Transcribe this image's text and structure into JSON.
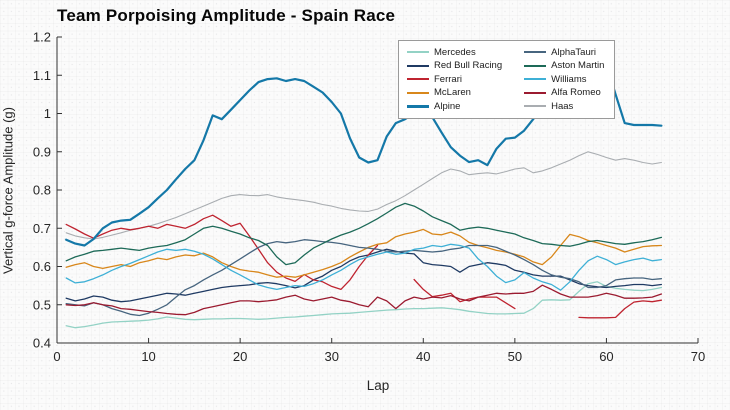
{
  "title": "Team Porpoising Amplitude - Spain Race",
  "x_axis": {
    "label": "Lap",
    "tick_labels": [
      "0",
      "10",
      "20",
      "30",
      "40",
      "50",
      "60",
      "70"
    ],
    "tick_values": [
      0,
      10,
      20,
      30,
      40,
      50,
      60,
      70
    ]
  },
  "y_axis": {
    "label": "Vertical g-force Amplitude (g)",
    "tick_labels": [
      "0.4",
      "0.5",
      "0.6",
      "0.7",
      "0.8",
      "0.9",
      "1",
      "1.1",
      "1.2"
    ],
    "tick_values": [
      0.4,
      0.5,
      0.6,
      0.7,
      0.8,
      0.9,
      1.0,
      1.1,
      1.2
    ]
  },
  "legend": {
    "columns": [
      [
        "Mercedes",
        "Red Bull Racing",
        "Ferrari",
        "McLaren",
        "Alpine"
      ],
      [
        "AlphaTauri",
        "Aston Martin",
        "Williams",
        "Alfa Romeo",
        "Haas"
      ]
    ]
  },
  "chart_data": {
    "type": "line",
    "title": "Team Porpoising Amplitude - Spain Race",
    "xlabel": "Lap",
    "ylabel": "Vertical g-force Amplitude (g)",
    "xlim": [
      0,
      70
    ],
    "ylim": [
      0.4,
      1.2
    ],
    "grid": "fine dotted",
    "legend_position": "upper center inside plot",
    "lap_start": 1,
    "series": [
      {
        "name": "Haas",
        "color": "#a9adb1",
        "width": 1.1,
        "values": [
          0.688,
          0.68,
          0.675,
          0.672,
          0.676,
          0.682,
          0.688,
          0.695,
          0.7,
          0.705,
          0.712,
          0.72,
          0.728,
          0.738,
          0.748,
          0.758,
          0.768,
          0.778,
          0.785,
          0.788,
          0.786,
          0.785,
          0.788,
          0.782,
          0.778,
          0.775,
          0.772,
          0.768,
          0.762,
          0.758,
          0.752,
          0.748,
          0.745,
          0.744,
          0.75,
          0.762,
          0.772,
          0.785,
          0.8,
          0.815,
          0.83,
          0.845,
          0.855,
          0.85,
          0.84,
          0.843,
          0.845,
          0.842,
          0.848,
          0.855,
          0.858,
          0.845,
          0.85,
          0.858,
          0.868,
          0.878,
          0.89,
          0.9,
          0.893,
          0.885,
          0.878,
          0.882,
          0.878,
          0.872,
          0.868,
          0.872
        ]
      },
      {
        "name": "Mercedes",
        "color": "#93d2c5",
        "width": 1.3,
        "values": [
          0.445,
          0.44,
          0.443,
          0.447,
          0.452,
          0.455,
          0.456,
          0.457,
          0.458,
          0.46,
          0.463,
          0.468,
          0.465,
          0.462,
          0.461,
          0.462,
          0.463,
          0.463,
          0.464,
          0.464,
          0.463,
          0.462,
          0.463,
          0.465,
          0.467,
          0.468,
          0.47,
          0.472,
          0.474,
          0.476,
          0.477,
          0.478,
          0.48,
          0.482,
          0.484,
          0.486,
          0.487,
          0.489,
          0.49,
          0.49,
          0.491,
          0.492,
          0.49,
          0.487,
          0.483,
          0.48,
          0.477,
          0.476,
          0.476,
          0.477,
          0.478,
          0.49,
          0.512,
          0.513,
          0.512,
          0.513,
          0.535,
          0.555,
          0.56,
          0.548,
          0.543,
          0.54,
          0.538,
          0.537,
          0.54,
          0.545
        ]
      },
      {
        "name": "Red Bull Racing",
        "color": "#1f3a63",
        "width": 1.3,
        "values": [
          0.517,
          0.51,
          0.515,
          0.523,
          0.52,
          0.512,
          0.508,
          0.51,
          0.515,
          0.52,
          0.525,
          0.53,
          0.528,
          0.525,
          0.53,
          0.535,
          0.54,
          0.545,
          0.548,
          0.55,
          0.552,
          0.556,
          0.558,
          0.555,
          0.55,
          0.544,
          0.55,
          0.565,
          0.575,
          0.59,
          0.6,
          0.615,
          0.625,
          0.63,
          0.638,
          0.645,
          0.64,
          0.635,
          0.633,
          0.61,
          0.605,
          0.603,
          0.6,
          0.585,
          0.6,
          0.605,
          0.61,
          0.607,
          0.603,
          0.59,
          0.585,
          0.578,
          0.575,
          0.575,
          0.575,
          0.565,
          0.555,
          0.55,
          0.547,
          0.545,
          0.548,
          0.55,
          0.553,
          0.553,
          0.55,
          0.553
        ]
      },
      {
        "name": "Ferrari",
        "color": "#bf2430",
        "width": 1.3,
        "values": [
          0.71,
          0.698,
          0.685,
          0.674,
          0.685,
          0.695,
          0.7,
          0.696,
          0.7,
          0.705,
          0.7,
          0.71,
          0.705,
          0.7,
          0.71,
          0.725,
          0.734,
          0.72,
          0.705,
          0.713,
          0.68,
          0.645,
          0.61,
          0.585,
          0.57,
          0.561,
          0.579,
          0.565,
          0.56,
          0.548,
          0.54,
          0.565,
          0.6,
          0.63,
          0.655,
          null,
          null,
          null,
          0.566,
          0.54,
          0.521,
          0.525,
          0.53,
          0.508,
          0.515,
          0.52,
          0.52,
          0.52,
          0.505,
          0.49,
          null,
          null,
          null,
          null,
          null,
          null,
          0.467,
          0.466,
          0.466,
          0.466,
          0.467,
          0.49,
          0.507,
          0.51,
          0.508,
          0.512
        ]
      },
      {
        "name": "McLaren",
        "color": "#d8871b",
        "width": 1.3,
        "values": [
          0.598,
          0.605,
          0.61,
          0.6,
          0.595,
          0.6,
          0.605,
          0.6,
          0.61,
          0.615,
          0.622,
          0.618,
          0.625,
          0.63,
          0.628,
          0.635,
          0.625,
          0.61,
          0.6,
          0.592,
          0.588,
          0.585,
          0.578,
          0.572,
          0.575,
          0.572,
          0.578,
          0.585,
          0.592,
          0.6,
          0.61,
          0.625,
          0.638,
          0.65,
          0.658,
          0.662,
          0.678,
          0.685,
          0.69,
          0.697,
          0.685,
          0.683,
          0.69,
          0.68,
          0.663,
          0.655,
          0.649,
          0.642,
          0.638,
          0.632,
          0.625,
          0.612,
          0.605,
          0.625,
          0.655,
          0.684,
          0.678,
          0.668,
          0.662,
          0.655,
          0.648,
          0.638,
          0.645,
          0.652,
          0.654,
          0.655
        ]
      },
      {
        "name": "AlphaTauri",
        "color": "#47657f",
        "width": 1.3,
        "values": [
          0.503,
          0.5,
          0.497,
          0.505,
          0.5,
          0.49,
          0.483,
          0.475,
          0.472,
          0.478,
          0.488,
          0.5,
          0.52,
          0.539,
          0.55,
          0.565,
          0.578,
          0.59,
          0.605,
          0.62,
          0.635,
          0.65,
          0.66,
          0.665,
          0.662,
          0.665,
          0.67,
          0.668,
          0.665,
          0.663,
          0.66,
          0.655,
          0.65,
          0.648,
          0.645,
          0.64,
          0.638,
          0.64,
          0.642,
          0.64,
          0.638,
          0.64,
          0.645,
          0.648,
          0.655,
          0.655,
          0.655,
          0.65,
          0.64,
          0.63,
          0.618,
          0.605,
          0.59,
          0.578,
          0.572,
          0.568,
          0.56,
          0.545,
          0.545,
          0.55,
          0.565,
          0.568,
          0.57,
          0.57,
          0.566,
          0.568
        ]
      },
      {
        "name": "Aston Martin",
        "color": "#1d6a58",
        "width": 1.3,
        "values": [
          0.615,
          0.625,
          0.632,
          0.64,
          0.642,
          0.645,
          0.648,
          0.645,
          0.642,
          0.648,
          0.652,
          0.655,
          0.662,
          0.67,
          0.685,
          0.7,
          0.705,
          0.7,
          0.692,
          0.685,
          0.675,
          0.668,
          0.655,
          0.625,
          0.605,
          0.61,
          0.63,
          0.648,
          0.66,
          0.672,
          0.682,
          0.69,
          0.7,
          0.712,
          0.725,
          0.74,
          0.755,
          0.765,
          0.758,
          0.745,
          0.73,
          0.72,
          0.71,
          0.695,
          0.7,
          0.703,
          0.7,
          0.695,
          0.69,
          0.685,
          0.675,
          0.668,
          0.66,
          0.658,
          0.655,
          0.653,
          0.658,
          0.665,
          0.668,
          0.664,
          0.66,
          0.658,
          0.662,
          0.665,
          0.67,
          0.676
        ]
      },
      {
        "name": "Williams",
        "color": "#3eb0d6",
        "width": 1.3,
        "values": [
          0.57,
          0.557,
          0.56,
          0.568,
          0.578,
          0.59,
          0.6,
          0.608,
          0.618,
          0.628,
          0.638,
          0.645,
          0.642,
          0.645,
          0.64,
          0.632,
          0.62,
          0.605,
          0.59,
          0.578,
          0.565,
          0.552,
          0.545,
          0.54,
          0.545,
          0.55,
          0.548,
          0.555,
          0.565,
          0.578,
          0.59,
          0.605,
          0.618,
          0.625,
          0.632,
          0.638,
          0.632,
          0.635,
          0.645,
          0.648,
          0.655,
          0.652,
          0.658,
          0.655,
          0.648,
          0.62,
          0.6,
          0.575,
          0.558,
          0.565,
          0.584,
          0.57,
          0.56,
          0.553,
          0.538,
          0.56,
          0.59,
          0.615,
          0.627,
          0.618,
          0.605,
          0.612,
          0.618,
          0.622,
          0.615,
          0.618
        ]
      },
      {
        "name": "Alfa Romeo",
        "color": "#9b1b30",
        "width": 1.3,
        "values": [
          0.5,
          0.498,
          0.5,
          0.505,
          0.5,
          0.497,
          0.49,
          0.488,
          0.485,
          0.482,
          0.48,
          0.477,
          0.475,
          0.474,
          0.48,
          0.49,
          0.495,
          0.5,
          0.505,
          0.51,
          0.51,
          0.508,
          0.51,
          0.513,
          0.52,
          0.525,
          0.515,
          0.51,
          0.515,
          0.52,
          0.512,
          0.508,
          0.5,
          0.495,
          0.52,
          0.51,
          0.49,
          0.51,
          0.52,
          0.515,
          0.52,
          0.518,
          0.524,
          0.515,
          0.51,
          0.52,
          0.525,
          0.53,
          0.528,
          0.53,
          0.53,
          0.535,
          0.551,
          0.54,
          0.528,
          0.52,
          0.52,
          0.52,
          0.524,
          0.53,
          0.525,
          0.517,
          0.517,
          0.518,
          0.52,
          0.528
        ]
      },
      {
        "name": "Alpine",
        "color": "#1478a8",
        "width": 2.2,
        "values": [
          0.67,
          0.66,
          0.655,
          0.672,
          0.7,
          0.715,
          0.72,
          0.722,
          0.738,
          0.755,
          0.778,
          0.8,
          0.828,
          0.855,
          0.878,
          0.93,
          0.995,
          0.985,
          1.01,
          1.035,
          1.06,
          1.082,
          1.09,
          1.092,
          1.085,
          1.09,
          1.085,
          1.07,
          1.055,
          1.03,
          1.0,
          0.935,
          0.885,
          0.872,
          0.878,
          0.94,
          0.975,
          0.985,
          1.0,
          1.022,
          0.99,
          0.95,
          0.912,
          0.89,
          0.873,
          0.878,
          0.865,
          0.908,
          0.934,
          0.937,
          0.955,
          0.985,
          1.02,
          1.055,
          1.078,
          1.1,
          1.13,
          1.14,
          null,
          1.128,
          1.05,
          0.975,
          0.97,
          0.97,
          0.97,
          0.968
        ]
      }
    ]
  }
}
